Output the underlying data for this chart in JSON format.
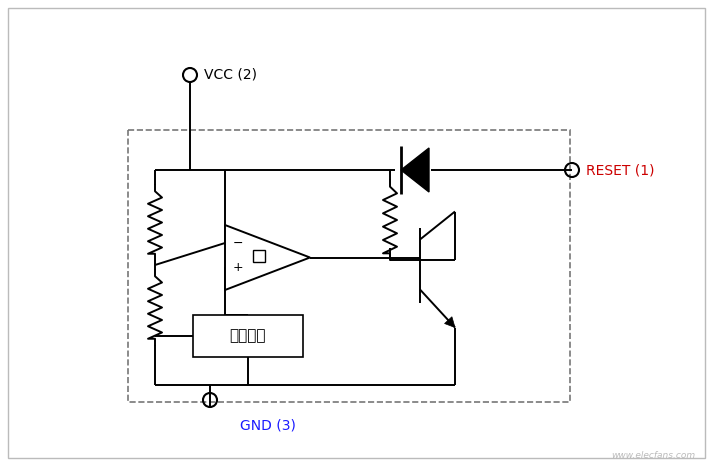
{
  "bg_color": "#ffffff",
  "vcc_label": "VCC (2)",
  "gnd_label": "GND (3)",
  "reset_label": "RESET (1)",
  "box_label": "比较电压",
  "gnd_color": "#1a1aff",
  "reset_color": "#cc0000",
  "line_color": "#000000",
  "outer_border_color": "#bbbbbb",
  "dash_border_color": "#777777",
  "lw": 1.4
}
